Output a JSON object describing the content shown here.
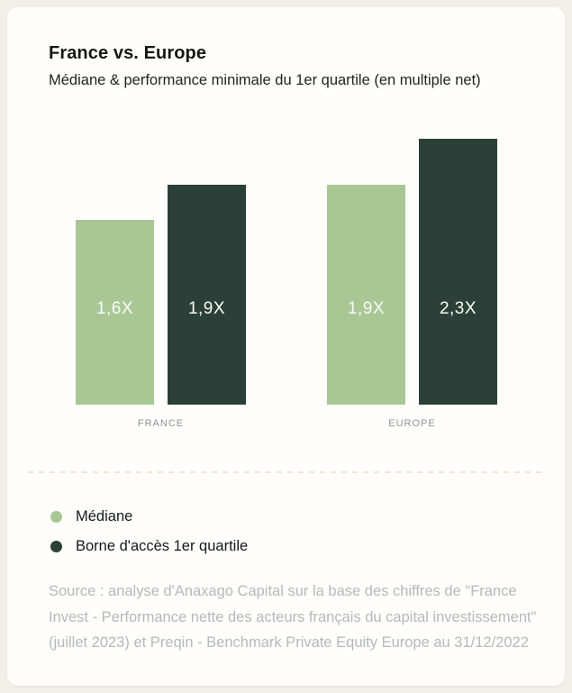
{
  "card": {
    "title": "France vs. Europe",
    "subtitle": "Médiane & performance minimale du 1er quartile (en multiple net)"
  },
  "chart_data": {
    "type": "bar",
    "title": "France vs. Europe",
    "subtitle": "Médiane & performance minimale du 1er quartile (en multiple net)",
    "categories": [
      "FRANCE",
      "EUROPE"
    ],
    "series": [
      {
        "name": "Médiane",
        "color": "#a9c795",
        "values": [
          1.6,
          1.9
        ],
        "labels": [
          "1,6X",
          "1,9X"
        ]
      },
      {
        "name": "Borne d'accès 1er quartile",
        "color": "#2b4038",
        "values": [
          1.9,
          2.3
        ],
        "labels": [
          "1,9X",
          "2,3X"
        ]
      }
    ],
    "value_suffix": "X",
    "decimal_separator": ",",
    "ylim": [
      0,
      2.3
    ],
    "grid": false,
    "axis_labels_shown": false,
    "legend_position": "bottom-left",
    "value_label_color": "#ffffff"
  },
  "legend": {
    "items": [
      {
        "label": "Médiane",
        "color": "#a9c795"
      },
      {
        "label": "Borne d'accès 1er quartile",
        "color": "#2b4038"
      }
    ]
  },
  "source": {
    "lines": [
      "Source : analyse d'Anaxago Capital sur la base des chiffres de \"France",
      "Invest - Performance nette des acteurs français du capital investissement\"",
      "(juillet 2023) et Preqin - Benchmark Private Equity Europe au 31/12/2022"
    ]
  },
  "colors": {
    "page_background": "#f2efe9",
    "card_background": "#fffefc",
    "median_green": "#a9c795",
    "quartile_dark_green": "#2b4038",
    "category_label_gray": "#8f9296",
    "source_gray": "#b5b8ba",
    "divider_beige": "#ece4d8"
  }
}
